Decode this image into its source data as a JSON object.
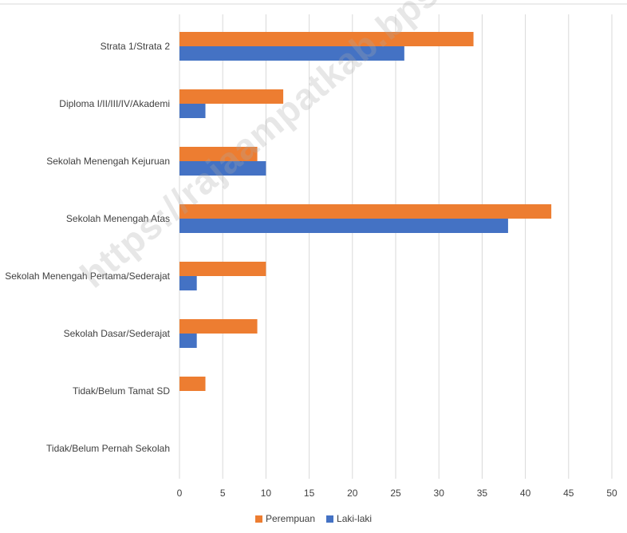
{
  "chart_data": {
    "type": "bar",
    "orientation": "horizontal",
    "categories": [
      "Strata 1/Strata 2",
      "Diploma I/II/III/IV/Akademi",
      "Sekolah Menengah Kejuruan",
      "Sekolah Menengah Atas",
      "Sekolah Menengah Pertama/Sederajat",
      "Sekolah Dasar/Sederajat",
      "Tidak/Belum Tamat SD",
      "Tidak/Belum Pernah Sekolah"
    ],
    "series": [
      {
        "name": "Perempuan",
        "color": "#ED7D31",
        "values": [
          34,
          12,
          9,
          43,
          10,
          9,
          3,
          0
        ]
      },
      {
        "name": "Laki-laki",
        "color": "#4472C4",
        "values": [
          26,
          3,
          10,
          38,
          2,
          2,
          0,
          0
        ]
      }
    ],
    "xlim": [
      0,
      50
    ],
    "xticks": [
      "0",
      "5",
      "10",
      "15",
      "20",
      "25",
      "30",
      "35",
      "40",
      "45",
      "50"
    ],
    "grid": true,
    "legend_position": "bottom"
  },
  "watermark": "https://rajaampatkab.bps.go.id"
}
